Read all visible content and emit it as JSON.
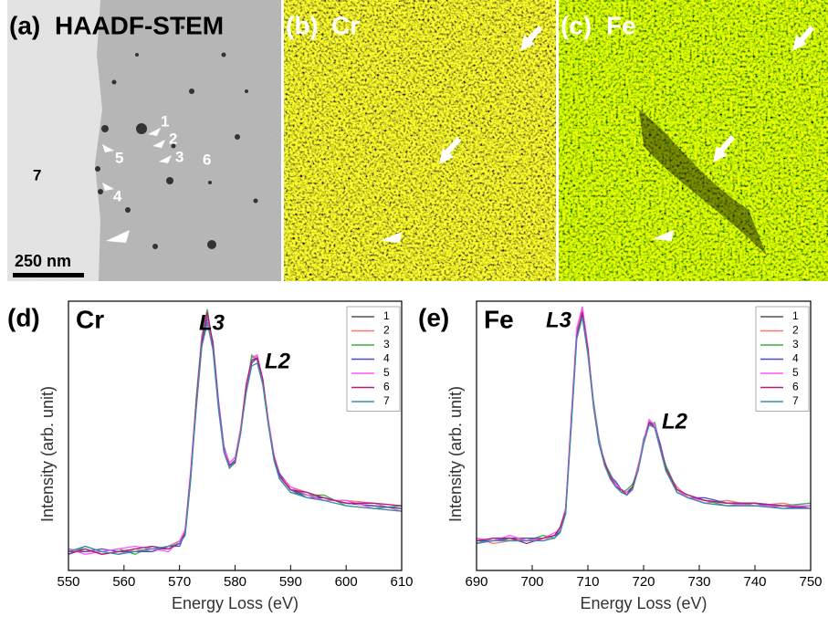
{
  "panels": [
    {
      "label": "(a)",
      "title": "HAADF-STEM",
      "annotations": [
        "1",
        "2",
        "3",
        "4",
        "5",
        "6",
        "7"
      ],
      "scale_bar": "250 nm"
    },
    {
      "label": "(b)",
      "title": "Cr"
    },
    {
      "label": "(c)",
      "title": "Fe"
    }
  ],
  "chart_data": [
    {
      "type": "line",
      "label": "(d)",
      "title": "Cr",
      "xlabel": "Energy Loss (eV)",
      "ylabel": "Intensity (arb. unit)",
      "annotations": [
        "L3",
        "L2"
      ],
      "xlim": [
        550,
        610
      ],
      "xticks": [
        550,
        560,
        570,
        580,
        590,
        600,
        610
      ],
      "ylim": [
        0,
        100
      ],
      "x": [
        550,
        553,
        556,
        559,
        562,
        565,
        568,
        570,
        571,
        572,
        573,
        574,
        575,
        576,
        577,
        578,
        579,
        580,
        581,
        582,
        583,
        584,
        585,
        586,
        587,
        588,
        590,
        593,
        596,
        600,
        605,
        610
      ],
      "series": [
        {
          "name": "1",
          "color": "#555555",
          "values": [
            7,
            8,
            6,
            7,
            7,
            8,
            8,
            10,
            14,
            35,
            62,
            85,
            95,
            84,
            62,
            45,
            39,
            41,
            52,
            68,
            78,
            79,
            70,
            55,
            42,
            35,
            30,
            28,
            27,
            25,
            24,
            23
          ]
        },
        {
          "name": "2",
          "color": "#f07878",
          "values": [
            8,
            7,
            7,
            6,
            8,
            7,
            9,
            11,
            15,
            36,
            60,
            83,
            93,
            85,
            63,
            46,
            40,
            42,
            53,
            69,
            79,
            80,
            71,
            56,
            43,
            36,
            31,
            29,
            26,
            26,
            25,
            22
          ]
        },
        {
          "name": "3",
          "color": "#3cb043",
          "values": [
            6,
            9,
            7,
            8,
            6,
            9,
            8,
            10,
            13,
            33,
            64,
            87,
            97,
            83,
            61,
            44,
            38,
            40,
            51,
            67,
            80,
            78,
            69,
            54,
            41,
            34,
            29,
            28,
            28,
            24,
            23,
            24
          ]
        },
        {
          "name": "4",
          "color": "#4a4ac8",
          "values": [
            7,
            7,
            8,
            7,
            7,
            7,
            9,
            9,
            14,
            34,
            61,
            84,
            94,
            85,
            63,
            46,
            39,
            41,
            52,
            67,
            77,
            79,
            70,
            55,
            42,
            36,
            30,
            27,
            27,
            25,
            24,
            23
          ]
        },
        {
          "name": "5",
          "color": "#ff55ff",
          "values": [
            8,
            6,
            7,
            8,
            9,
            8,
            7,
            11,
            15,
            37,
            63,
            86,
            95,
            83,
            62,
            45,
            40,
            42,
            52,
            68,
            78,
            80,
            70,
            55,
            43,
            35,
            31,
            28,
            26,
            26,
            23,
            22
          ]
        },
        {
          "name": "6",
          "color": "#b0207a",
          "values": [
            6,
            8,
            6,
            7,
            8,
            9,
            8,
            10,
            14,
            35,
            62,
            85,
            96,
            84,
            61,
            44,
            39,
            40,
            51,
            69,
            78,
            79,
            71,
            54,
            42,
            35,
            30,
            29,
            27,
            25,
            25,
            24
          ]
        },
        {
          "name": "7",
          "color": "#3d8bb0",
          "values": [
            7,
            9,
            7,
            6,
            7,
            8,
            9,
            10,
            13,
            34,
            60,
            83,
            92,
            82,
            60,
            44,
            38,
            41,
            51,
            66,
            76,
            77,
            69,
            54,
            41,
            34,
            29,
            27,
            26,
            24,
            23,
            22
          ]
        }
      ]
    },
    {
      "type": "line",
      "label": "(e)",
      "title": "Fe",
      "xlabel": "Energy Loss (eV)",
      "ylabel": "Intensity (arb. unit)",
      "annotations": [
        "L3",
        "L2"
      ],
      "xlim": [
        690,
        750
      ],
      "xticks": [
        690,
        700,
        710,
        720,
        730,
        740,
        750
      ],
      "ylim": [
        0,
        100
      ],
      "x": [
        690,
        693,
        696,
        699,
        702,
        704,
        705,
        706,
        707,
        708,
        709,
        710,
        711,
        712,
        713,
        714,
        715,
        716,
        717,
        718,
        719,
        720,
        721,
        722,
        723,
        724,
        726,
        728,
        731,
        735,
        740,
        745,
        750
      ],
      "series": [
        {
          "name": "1",
          "color": "#555555",
          "values": [
            11,
            11,
            12,
            11,
            12,
            13,
            15,
            22,
            55,
            88,
            96,
            82,
            62,
            48,
            40,
            35,
            32,
            30,
            29,
            31,
            38,
            48,
            55,
            54,
            46,
            38,
            30,
            27,
            26,
            25,
            25,
            24,
            24
          ]
        },
        {
          "name": "2",
          "color": "#f07878",
          "values": [
            12,
            10,
            11,
            12,
            11,
            13,
            16,
            23,
            54,
            87,
            97,
            83,
            61,
            47,
            41,
            34,
            31,
            30,
            28,
            31,
            39,
            47,
            56,
            53,
            45,
            37,
            31,
            27,
            25,
            26,
            24,
            25,
            23
          ]
        },
        {
          "name": "3",
          "color": "#3cb043",
          "values": [
            10,
            12,
            11,
            11,
            13,
            12,
            15,
            21,
            56,
            89,
            95,
            81,
            63,
            49,
            40,
            36,
            32,
            29,
            30,
            32,
            37,
            49,
            54,
            55,
            46,
            39,
            30,
            28,
            26,
            24,
            25,
            24,
            25
          ]
        },
        {
          "name": "4",
          "color": "#4a4ac8",
          "values": [
            11,
            11,
            12,
            12,
            12,
            13,
            14,
            22,
            55,
            88,
            95,
            82,
            62,
            48,
            39,
            35,
            33,
            30,
            29,
            31,
            38,
            48,
            55,
            54,
            47,
            38,
            29,
            27,
            27,
            25,
            25,
            23,
            24
          ]
        },
        {
          "name": "5",
          "color": "#ff55ff",
          "values": [
            12,
            11,
            13,
            11,
            12,
            14,
            15,
            23,
            57,
            90,
            98,
            83,
            62,
            48,
            40,
            35,
            32,
            30,
            29,
            30,
            38,
            48,
            56,
            54,
            46,
            38,
            30,
            27,
            26,
            25,
            24,
            24,
            24
          ]
        },
        {
          "name": "6",
          "color": "#b0207a",
          "values": [
            11,
            12,
            12,
            10,
            12,
            13,
            16,
            22,
            54,
            87,
            96,
            82,
            61,
            47,
            40,
            35,
            31,
            30,
            28,
            31,
            37,
            47,
            55,
            53,
            46,
            38,
            30,
            28,
            26,
            25,
            25,
            24,
            23
          ]
        },
        {
          "name": "7",
          "color": "#3d8bb0",
          "values": [
            10,
            11,
            11,
            11,
            11,
            12,
            14,
            21,
            53,
            86,
            94,
            80,
            61,
            47,
            39,
            34,
            31,
            29,
            28,
            30,
            37,
            47,
            54,
            53,
            45,
            37,
            29,
            27,
            25,
            24,
            24,
            23,
            23
          ]
        }
      ]
    }
  ]
}
